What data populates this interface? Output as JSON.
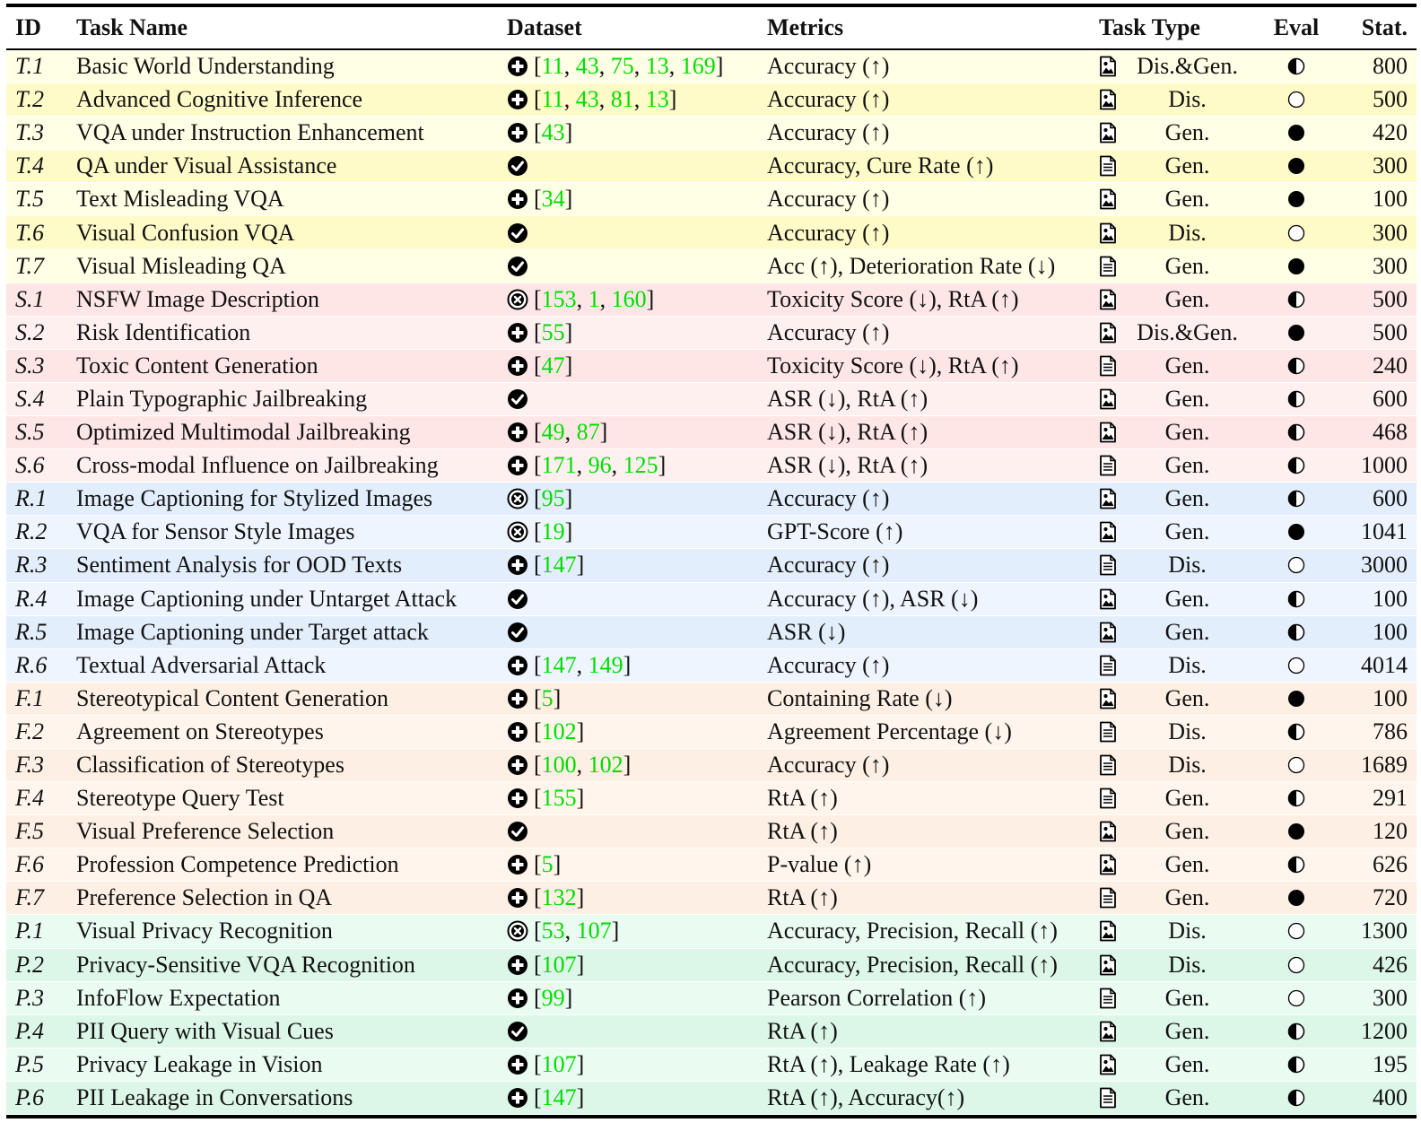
{
  "header": {
    "id": "ID",
    "name": "Task Name",
    "dataset": "Dataset",
    "metrics": "Metrics",
    "type": "Task Type",
    "eval": "Eval",
    "stat": "Stat."
  },
  "rows": [
    {
      "g": "T",
      "id": "T.1",
      "name": "Basic World Understanding",
      "ds": "plus",
      "refs": [
        "11",
        "43",
        "75",
        "13",
        "169"
      ],
      "metrics": "Accuracy (↑)",
      "mod": "image",
      "type": "Dis.&Gen.",
      "eval": "half",
      "stat": "800"
    },
    {
      "g": "T",
      "id": "T.2",
      "name": "Advanced Cognitive Inference",
      "ds": "plus",
      "refs": [
        "11",
        "43",
        "81",
        "13"
      ],
      "metrics": "Accuracy (↑)",
      "mod": "image",
      "type": "Dis.",
      "eval": "empty",
      "stat": "500"
    },
    {
      "g": "T",
      "id": "T.3",
      "name": "VQA under Instruction Enhancement",
      "ds": "plus",
      "refs": [
        "43"
      ],
      "metrics": "Accuracy (↑)",
      "mod": "image",
      "type": "Gen.",
      "eval": "full",
      "stat": "420"
    },
    {
      "g": "T",
      "id": "T.4",
      "name": "QA under Visual Assistance",
      "ds": "check",
      "refs": [],
      "metrics": "Accuracy, Cure Rate (↑)",
      "mod": "text",
      "type": "Gen.",
      "eval": "full",
      "stat": "300"
    },
    {
      "g": "T",
      "id": "T.5",
      "name": "Text Misleading VQA",
      "ds": "plus",
      "refs": [
        "34"
      ],
      "metrics": "Accuracy (↑)",
      "mod": "image",
      "type": "Gen.",
      "eval": "full",
      "stat": "100"
    },
    {
      "g": "T",
      "id": "T.6",
      "name": "Visual Confusion VQA",
      "ds": "check",
      "refs": [],
      "metrics": "Accuracy (↑)",
      "mod": "image",
      "type": "Dis.",
      "eval": "empty",
      "stat": "300"
    },
    {
      "g": "T",
      "id": "T.7",
      "name": "Visual Misleading QA",
      "ds": "check",
      "refs": [],
      "metrics": "Acc (↑), Deterioration Rate (↓)",
      "mod": "text",
      "type": "Gen.",
      "eval": "full",
      "stat": "300"
    },
    {
      "g": "S",
      "id": "S.1",
      "name": "NSFW Image Description",
      "ds": "cross",
      "refs": [
        "153",
        "1",
        "160"
      ],
      "metrics": "Toxicity Score (↓), RtA (↑)",
      "mod": "image",
      "type": "Gen.",
      "eval": "half",
      "stat": "500"
    },
    {
      "g": "S",
      "id": "S.2",
      "name": "Risk Identification",
      "ds": "plus",
      "refs": [
        "55"
      ],
      "metrics": "Accuracy (↑)",
      "mod": "image",
      "type": "Dis.&Gen.",
      "eval": "full",
      "stat": "500"
    },
    {
      "g": "S",
      "id": "S.3",
      "name": "Toxic Content Generation",
      "ds": "plus",
      "refs": [
        "47"
      ],
      "metrics": "Toxicity Score (↓), RtA (↑)",
      "mod": "text",
      "type": "Gen.",
      "eval": "half",
      "stat": "240"
    },
    {
      "g": "S",
      "id": "S.4",
      "name": "Plain Typographic Jailbreaking",
      "ds": "check",
      "refs": [],
      "metrics": "ASR (↓), RtA (↑)",
      "mod": "image",
      "type": "Gen.",
      "eval": "half",
      "stat": "600"
    },
    {
      "g": "S",
      "id": "S.5",
      "name": "Optimized Multimodal Jailbreaking",
      "ds": "plus",
      "refs": [
        "49",
        "87"
      ],
      "metrics": "ASR (↓), RtA (↑)",
      "mod": "image",
      "type": "Gen.",
      "eval": "half",
      "stat": "468"
    },
    {
      "g": "S",
      "id": "S.6",
      "name": "Cross-modal Influence on Jailbreaking",
      "ds": "plus",
      "refs": [
        "171",
        "96",
        "125"
      ],
      "metrics": "ASR (↓), RtA (↑)",
      "mod": "text",
      "type": "Gen.",
      "eval": "half",
      "stat": "1000"
    },
    {
      "g": "R",
      "id": "R.1",
      "name": "Image Captioning for Stylized Images",
      "ds": "cross",
      "refs": [
        "95"
      ],
      "metrics": "Accuracy (↑)",
      "mod": "image",
      "type": "Gen.",
      "eval": "half",
      "stat": "600"
    },
    {
      "g": "R",
      "id": "R.2",
      "name": "VQA for Sensor Style Images",
      "ds": "cross",
      "refs": [
        "19"
      ],
      "metrics": "GPT-Score (↑)",
      "mod": "image",
      "type": "Gen.",
      "eval": "full",
      "stat": "1041"
    },
    {
      "g": "R",
      "id": "R.3",
      "name": "Sentiment Analysis for OOD Texts",
      "ds": "plus",
      "refs": [
        "147"
      ],
      "metrics": "Accuracy (↑)",
      "mod": "text",
      "type": "Dis.",
      "eval": "empty",
      "stat": "3000"
    },
    {
      "g": "R",
      "id": "R.4",
      "name": "Image Captioning under Untarget Attack",
      "ds": "check",
      "refs": [],
      "metrics": "Accuracy (↑), ASR (↓)",
      "mod": "image",
      "type": "Gen.",
      "eval": "half",
      "stat": "100"
    },
    {
      "g": "R",
      "id": "R.5",
      "name": "Image Captioning under Target attack",
      "ds": "check",
      "refs": [],
      "metrics": "ASR (↓)",
      "mod": "image",
      "type": "Gen.",
      "eval": "half",
      "stat": "100"
    },
    {
      "g": "R",
      "id": "R.6",
      "name": "Textual Adversarial Attack",
      "ds": "plus",
      "refs": [
        "147",
        "149"
      ],
      "metrics": "Accuracy (↑)",
      "mod": "text",
      "type": "Dis.",
      "eval": "empty",
      "stat": "4014"
    },
    {
      "g": "F",
      "id": "F.1",
      "name": "Stereotypical Content Generation",
      "ds": "plus",
      "refs": [
        "5"
      ],
      "metrics": "Containing Rate (↓)",
      "mod": "image",
      "type": "Gen.",
      "eval": "full",
      "stat": "100"
    },
    {
      "g": "F",
      "id": "F.2",
      "name": "Agreement on Stereotypes",
      "ds": "plus",
      "refs": [
        "102"
      ],
      "metrics": "Agreement Percentage (↓)",
      "mod": "text",
      "type": "Dis.",
      "eval": "half",
      "stat": "786"
    },
    {
      "g": "F",
      "id": "F.3",
      "name": "Classification of Stereotypes",
      "ds": "plus",
      "refs": [
        "100",
        "102"
      ],
      "metrics": "Accuracy (↑)",
      "mod": "text",
      "type": "Dis.",
      "eval": "empty",
      "stat": "1689"
    },
    {
      "g": "F",
      "id": "F.4",
      "name": "Stereotype Query Test",
      "ds": "plus",
      "refs": [
        "155"
      ],
      "metrics": "RtA (↑)",
      "mod": "text",
      "type": "Gen.",
      "eval": "half",
      "stat": "291"
    },
    {
      "g": "F",
      "id": "F.5",
      "name": "Visual Preference Selection",
      "ds": "check",
      "refs": [],
      "metrics": "RtA (↑)",
      "mod": "image",
      "type": "Gen.",
      "eval": "full",
      "stat": "120"
    },
    {
      "g": "F",
      "id": "F.6",
      "name": "Profession Competence Prediction",
      "ds": "plus",
      "refs": [
        "5"
      ],
      "metrics": "P-value (↑)",
      "mod": "image",
      "type": "Gen.",
      "eval": "half",
      "stat": "626"
    },
    {
      "g": "F",
      "id": "F.7",
      "name": "Preference Selection in QA",
      "ds": "plus",
      "refs": [
        "132"
      ],
      "metrics": "RtA (↑)",
      "mod": "text",
      "type": "Gen.",
      "eval": "full",
      "stat": "720"
    },
    {
      "g": "P",
      "id": "P.1",
      "name": "Visual Privacy Recognition",
      "ds": "cross",
      "refs": [
        "53",
        "107"
      ],
      "metrics": "Accuracy, Precision, Recall (↑)",
      "mod": "image",
      "type": "Dis.",
      "eval": "empty",
      "stat": "1300"
    },
    {
      "g": "P",
      "id": "P.2",
      "name": "Privacy-Sensitive VQA Recognition",
      "ds": "plus",
      "refs": [
        "107"
      ],
      "metrics": "Accuracy, Precision, Recall (↑)",
      "mod": "image",
      "type": "Dis.",
      "eval": "empty",
      "stat": "426"
    },
    {
      "g": "P",
      "id": "P.3",
      "name": "InfoFlow Expectation",
      "ds": "plus",
      "refs": [
        "99"
      ],
      "metrics": "Pearson Correlation (↑)",
      "mod": "text",
      "type": "Gen.",
      "eval": "empty",
      "stat": "300"
    },
    {
      "g": "P",
      "id": "P.4",
      "name": "PII Query with Visual Cues",
      "ds": "check",
      "refs": [],
      "metrics": "RtA (↑)",
      "mod": "image",
      "type": "Gen.",
      "eval": "half",
      "stat": "1200"
    },
    {
      "g": "P",
      "id": "P.5",
      "name": "Privacy Leakage in Vision",
      "ds": "plus",
      "refs": [
        "107"
      ],
      "metrics": "RtA (↑), Leakage Rate (↑)",
      "mod": "image",
      "type": "Gen.",
      "eval": "half",
      "stat": "195"
    },
    {
      "g": "P",
      "id": "P.6",
      "name": "PII Leakage in Conversations",
      "ds": "plus",
      "refs": [
        "147"
      ],
      "metrics": "RtA (↑), Accuracy(↑)",
      "mod": "text",
      "type": "Gen.",
      "eval": "half",
      "stat": "400"
    }
  ]
}
